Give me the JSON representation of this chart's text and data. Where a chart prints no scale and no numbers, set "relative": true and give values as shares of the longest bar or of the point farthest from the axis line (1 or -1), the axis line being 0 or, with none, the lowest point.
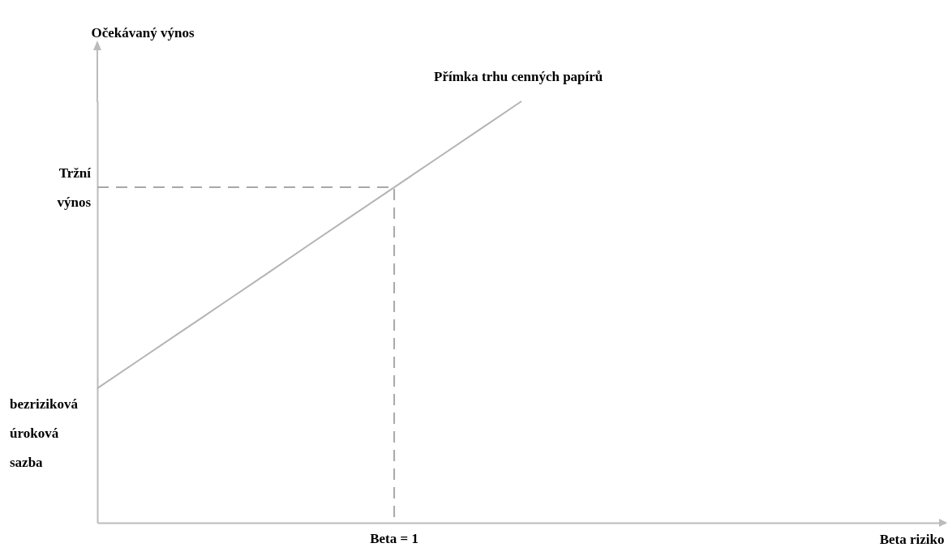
{
  "chart_data": {
    "type": "line",
    "relative": true,
    "ylabel": "Očekávaný výnos",
    "xlabel": "Beta riziko",
    "grid": false,
    "categories": [
      null,
      null,
      null,
      null,
      null,
      null,
      null,
      null,
      null,
      null,
      null,
      null,
      null,
      null,
      null,
      null,
      null,
      null,
      null,
      null,
      null
    ],
    "series": [
      {
        "name": "Přímka trhu cenných papírů",
        "color": "#b4b4b4",
        "values": [
          0.319,
          0.387,
          0.455,
          0.523,
          0.591,
          0.66,
          0.728,
          0.796,
          0.864,
          0.932,
          1,
          null,
          null,
          null,
          null,
          null,
          null,
          null,
          null,
          null,
          null
        ]
      }
    ],
    "ref_lines": [
      {
        "axis": "y",
        "value": 0.796,
        "label": "Tržní výnos",
        "color": "#a8a8a8",
        "line_style": "dashed"
      }
    ],
    "annotations": [
      "bezriziková úroková sazba",
      "Beta = 1"
    ]
  }
}
